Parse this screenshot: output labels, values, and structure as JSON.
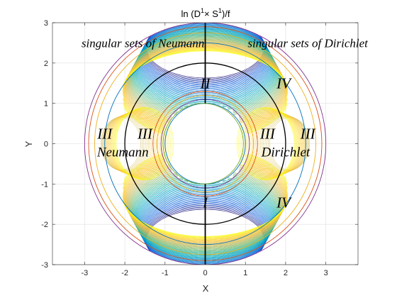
{
  "chart_data": {
    "type": "line",
    "title": "ln (D¹× S¹)/f",
    "title_parts": {
      "base": "ln (D",
      "sup1": "1",
      "times": "× S",
      "sup2": "1",
      "tail": ")/f"
    },
    "xlabel": "X",
    "ylabel": "Y",
    "xlim": [
      -3.8,
      3.8
    ],
    "ylim": [
      -3,
      3
    ],
    "xticks": [
      -3,
      -2,
      -1,
      0,
      1,
      2,
      3
    ],
    "yticks": [
      -3,
      -2,
      -1,
      0,
      1,
      2,
      3
    ],
    "xtick_labels": [
      "-3",
      "-2",
      "-1",
      "0",
      "1",
      "2",
      "3"
    ],
    "ytick_labels": [
      "-3",
      "-2",
      "-1",
      "0",
      "1",
      "2",
      "3"
    ],
    "grid": true,
    "aspect": "equal",
    "circles": [
      {
        "radius": 1.0,
        "color": "#0072BD"
      },
      {
        "radius": 1.0,
        "color": "#77AC30",
        "center_x": -0.05
      },
      {
        "radius": 1.1,
        "color": "#7E2F8E"
      },
      {
        "radius": 1.2,
        "color": "#EDB120"
      },
      {
        "radius": 1.3,
        "color": "#D95319"
      },
      {
        "radius": 2.0,
        "color": "#000000"
      },
      {
        "radius": 2.5,
        "color": "#0072BD"
      },
      {
        "radius": 2.75,
        "color": "#EDB120"
      },
      {
        "radius": 2.9,
        "color": "#D95319"
      },
      {
        "radius": 3.0,
        "color": "#7E2F8E"
      }
    ],
    "vertical_segments": [
      {
        "x": 0,
        "y_from": 1,
        "y_to": 3,
        "color": "#000000"
      },
      {
        "x": 0,
        "y_from": -3,
        "y_to": -1,
        "color": "#000000"
      }
    ],
    "surface": {
      "description_colormap": "parula",
      "inner_radius": 1,
      "outer_radius": 3,
      "colormap_stops": [
        "#352A87",
        "#0F5CDD",
        "#1481D6",
        "#06A4CA",
        "#2EB7A4",
        "#87BF77",
        "#D1BB59",
        "#FEC832",
        "#F9FB0E"
      ]
    },
    "annotations": [
      {
        "text": "singular sets of Neumann",
        "x": -1.55,
        "y": 2.5,
        "size": 17
      },
      {
        "text": "singular sets of Dirichlet",
        "x": 2.55,
        "y": 2.5,
        "size": 17
      },
      {
        "text": "II",
        "x": 0.0,
        "y": 1.5,
        "size": 21
      },
      {
        "text": "IV",
        "x": 1.95,
        "y": 1.5,
        "size": 21
      },
      {
        "text": "III",
        "x": -2.5,
        "y": 0.25,
        "size": 21
      },
      {
        "text": "III",
        "x": -1.5,
        "y": 0.25,
        "size": 21
      },
      {
        "text": "III",
        "x": 1.55,
        "y": 0.25,
        "size": 21
      },
      {
        "text": "III",
        "x": 2.55,
        "y": 0.25,
        "size": 21
      },
      {
        "text": "Neumann",
        "x": -2.05,
        "y": -0.2,
        "size": 19
      },
      {
        "text": "Dirichlet",
        "x": 2.0,
        "y": -0.2,
        "size": 19
      },
      {
        "text": "I",
        "x": 0.0,
        "y": -1.45,
        "size": 21
      },
      {
        "text": "IV",
        "x": 1.95,
        "y": -1.45,
        "size": 21
      }
    ]
  }
}
